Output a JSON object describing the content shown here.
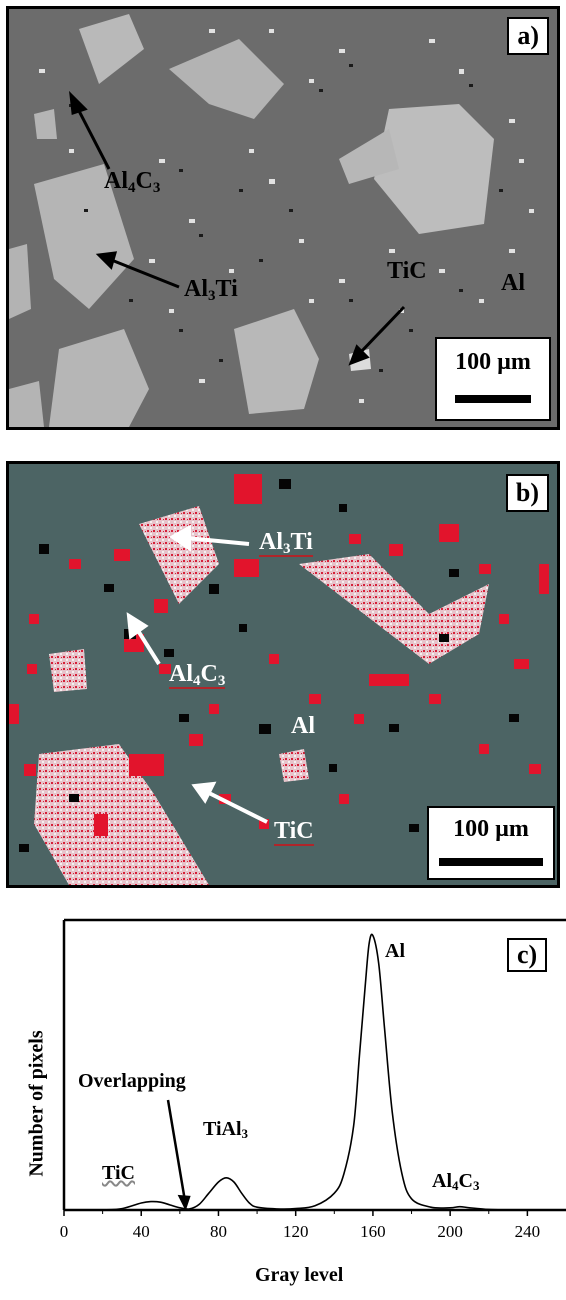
{
  "panel_a": {
    "tag": "a)",
    "labels": {
      "al4c3_main": "Al",
      "al4c3_sub1": "4",
      "al4c3_c": "C",
      "al4c3_sub2": "3",
      "al3ti_main": "Al",
      "al3ti_sub": "3",
      "al3ti_ti": "Ti",
      "tic": "TiC",
      "al": "Al"
    },
    "scale": "100 µm"
  },
  "panel_b": {
    "tag": "b)",
    "labels": {
      "al3ti_main": "Al",
      "al3ti_sub": "3",
      "al3ti_ti": "Ti",
      "al4c3_main": "Al",
      "al4c3_sub1": "4",
      "al4c3_c": "C",
      "al4c3_sub2": "3",
      "al": "Al",
      "tic": "TiC"
    },
    "scale": "100 µm"
  },
  "chart_data": {
    "type": "line",
    "tag": "c)",
    "xlabel": "Gray level",
    "ylabel": "Number of pixels",
    "xlim": [
      0,
      260
    ],
    "xticks": [
      0,
      40,
      80,
      120,
      160,
      200,
      240
    ],
    "ylim": [
      0,
      1
    ],
    "series": [
      {
        "x": [
          20,
          30,
          40,
          45,
          50,
          55,
          60,
          65,
          70,
          75,
          80,
          84,
          88,
          92,
          96,
          100,
          110,
          120,
          130,
          140,
          145,
          150,
          153,
          156,
          158,
          160,
          163,
          166,
          170,
          175,
          180,
          190,
          200,
          205,
          210,
          220,
          230,
          260
        ],
        "y": [
          0.0,
          0.005,
          0.025,
          0.03,
          0.028,
          0.018,
          0.008,
          0.004,
          0.02,
          0.06,
          0.1,
          0.115,
          0.1,
          0.06,
          0.025,
          0.01,
          0.004,
          0.005,
          0.015,
          0.06,
          0.13,
          0.3,
          0.55,
          0.8,
          0.95,
          0.98,
          0.88,
          0.65,
          0.35,
          0.13,
          0.04,
          0.01,
          0.008,
          0.012,
          0.008,
          0.002,
          0.0,
          0.0
        ]
      }
    ],
    "annotations": {
      "tic": "TiC",
      "overlapping": "Overlapping",
      "tial3_main": "TiAl",
      "tial3_sub": "3",
      "al": "Al",
      "al4c3_main": "Al",
      "al4c3_sub1": "4",
      "al4c3_c": "C",
      "al4c3_sub2": "3"
    }
  }
}
